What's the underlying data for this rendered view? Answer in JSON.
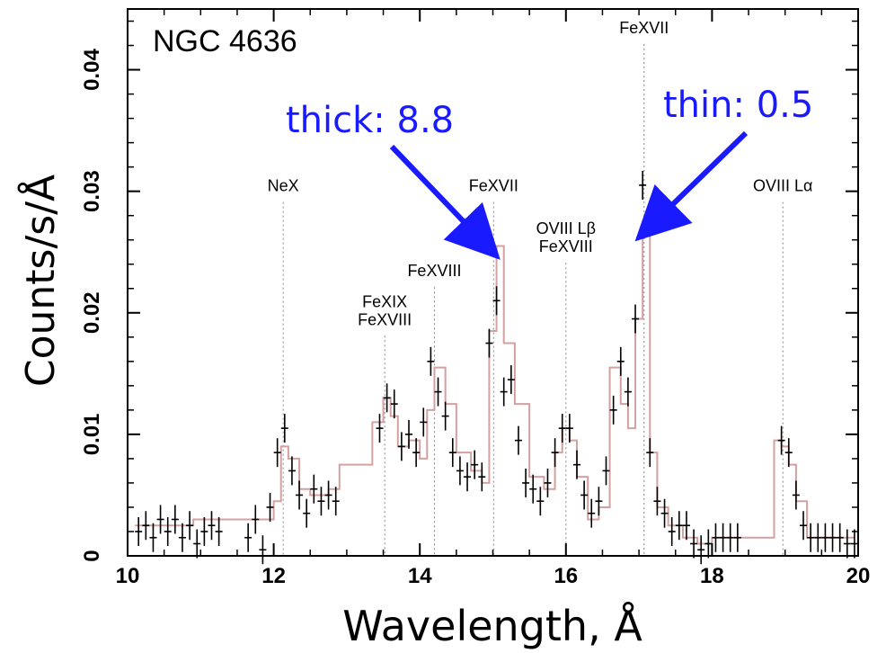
{
  "chart_data": {
    "type": "line",
    "title": "NGC 4636",
    "xlabel": "Wavelength, Å",
    "ylabel": "Counts/s/Å",
    "xlim": [
      10,
      20
    ],
    "ylim": [
      0,
      0.045
    ],
    "x_ticks": [
      "10",
      "12",
      "14",
      "16",
      "18",
      "20"
    ],
    "y_ticks": [
      "0",
      "0.01",
      "0.02",
      "0.03",
      "0.04"
    ],
    "grid": false,
    "colors": {
      "model": "#d4a0a0",
      "data": "#000000",
      "lines": "#888888",
      "annotation": "#1a1aff"
    },
    "line_markers": [
      {
        "label": "NeX",
        "x": 12.13,
        "top": 0.03
      },
      {
        "label": "FeXIX\nFeXVIII",
        "x": 13.52,
        "top": 0.019
      },
      {
        "label": "FeXVIII",
        "x": 14.2,
        "top": 0.023
      },
      {
        "label": "FeXVII",
        "x": 15.01,
        "top": 0.03
      },
      {
        "label": "OVIII Lβ\nFeXVIII",
        "x": 16.0,
        "top": 0.025
      },
      {
        "label": "FeXVII",
        "x": 17.07,
        "top": 0.043
      },
      {
        "label": "OVIII Lα",
        "x": 18.97,
        "top": 0.03
      }
    ],
    "annotations": [
      {
        "text": "thick: 8.8",
        "target_x": 15.0,
        "target_y": 0.025
      },
      {
        "text": "thin: 0.5",
        "target_x": 17.05,
        "target_y": 0.0265
      }
    ],
    "series": [
      {
        "name": "model",
        "x": [
          10.1,
          10.3,
          10.6,
          10.9,
          11.2,
          11.5,
          11.8,
          12.0,
          12.1,
          12.2,
          12.35,
          12.5,
          12.6,
          12.75,
          12.9,
          13.25,
          13.35,
          13.5,
          13.6,
          13.7,
          13.85,
          14.0,
          14.1,
          14.2,
          14.35,
          14.5,
          14.7,
          14.85,
          14.95,
          15.05,
          15.15,
          15.3,
          15.5,
          15.7,
          15.85,
          15.95,
          16.05,
          16.15,
          16.3,
          16.45,
          16.6,
          16.75,
          16.85,
          16.95,
          17.05,
          17.15,
          17.25,
          17.4,
          17.6,
          17.8,
          18.0,
          18.4,
          18.7,
          18.85,
          18.95,
          19.05,
          19.15,
          19.3,
          19.5,
          19.8
        ],
        "y": [
          0.0025,
          0.0025,
          0.0025,
          0.003,
          0.003,
          0.003,
          0.003,
          0.0045,
          0.009,
          0.008,
          0.0055,
          0.005,
          0.005,
          0.0055,
          0.0075,
          0.0075,
          0.011,
          0.013,
          0.0115,
          0.009,
          0.0095,
          0.008,
          0.012,
          0.0155,
          0.0125,
          0.0085,
          0.007,
          0.006,
          0.0185,
          0.0255,
          0.0175,
          0.0125,
          0.0065,
          0.0055,
          0.0085,
          0.0105,
          0.0095,
          0.0065,
          0.003,
          0.004,
          0.0155,
          0.0125,
          0.0105,
          0.0195,
          0.027,
          0.0085,
          0.004,
          0.0025,
          0.0015,
          0.001,
          0.0015,
          0.0015,
          0.0015,
          0.0095,
          0.009,
          0.0075,
          0.0045,
          0.0015,
          0.0015,
          0.0015
        ]
      },
      {
        "name": "data",
        "x": [
          10.15,
          10.25,
          10.35,
          10.45,
          10.55,
          10.65,
          10.75,
          10.85,
          10.95,
          11.05,
          11.15,
          11.25,
          11.65,
          11.75,
          11.85,
          11.95,
          12.05,
          12.15,
          12.25,
          12.35,
          12.45,
          12.55,
          12.65,
          12.75,
          12.85,
          13.45,
          13.55,
          13.65,
          13.75,
          13.85,
          13.95,
          14.05,
          14.15,
          14.25,
          14.35,
          14.45,
          14.55,
          14.65,
          14.75,
          14.85,
          14.95,
          15.05,
          15.15,
          15.25,
          15.35,
          15.45,
          15.55,
          15.65,
          15.75,
          15.85,
          15.95,
          16.05,
          16.15,
          16.25,
          16.35,
          16.45,
          16.55,
          16.65,
          16.75,
          16.85,
          16.95,
          17.05,
          17.15,
          17.25,
          17.35,
          17.45,
          17.55,
          17.65,
          17.75,
          17.85,
          17.95,
          18.05,
          18.15,
          18.25,
          18.35,
          18.95,
          19.05,
          19.15,
          19.25,
          19.35,
          19.45,
          19.55,
          19.65,
          19.75,
          19.85,
          19.95
        ],
        "y": [
          0.002,
          0.0025,
          0.0015,
          0.003,
          0.002,
          0.003,
          0.0015,
          0.0025,
          0.001,
          0.002,
          0.0025,
          0.002,
          0.0015,
          0.003,
          0.0005,
          0.004,
          0.0085,
          0.0105,
          0.007,
          0.005,
          0.0035,
          0.0055,
          0.0045,
          0.005,
          0.0045,
          0.0105,
          0.013,
          0.0125,
          0.009,
          0.01,
          0.0085,
          0.011,
          0.016,
          0.0135,
          0.0115,
          0.0085,
          0.007,
          0.0065,
          0.0075,
          0.0065,
          0.0175,
          0.021,
          0.0135,
          0.0145,
          0.0095,
          0.006,
          0.0055,
          0.0045,
          0.006,
          0.0085,
          0.0105,
          0.0105,
          0.0075,
          0.005,
          0.0035,
          0.0045,
          0.007,
          0.012,
          0.016,
          0.0135,
          0.0195,
          0.0305,
          0.0085,
          0.0045,
          0.0035,
          0.002,
          0.0025,
          0.0025,
          0.001,
          0.0005,
          0.001,
          0.0015,
          0.0015,
          0.0015,
          0.0015,
          0.0095,
          0.0085,
          0.005,
          0.0025,
          0.0015,
          0.0015,
          0.0015,
          0.0015,
          0.0015,
          0.001,
          0.001
        ]
      }
    ]
  }
}
